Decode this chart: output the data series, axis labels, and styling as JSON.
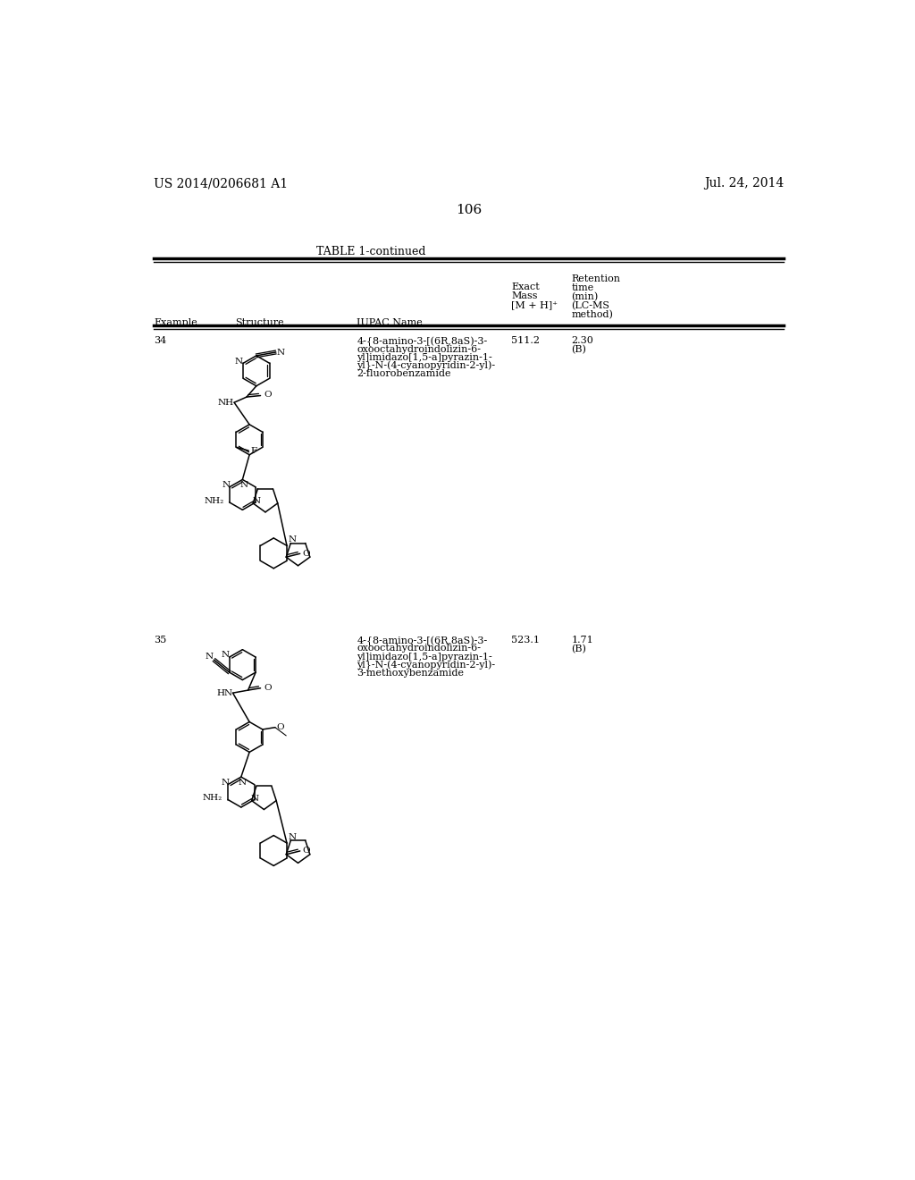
{
  "page_number": "106",
  "patent_number": "US 2014/0206681 A1",
  "patent_date": "Jul. 24, 2014",
  "table_title": "TABLE 1-continued",
  "background_color": "#ffffff",
  "rows": [
    {
      "example": "34",
      "iupac_lines": [
        "4-{8-amino-3-[(6R,8aS)-3-",
        "oxooctahydroindolizin-6-",
        "yl]imidazo[1,5-a]pyrazin-1-",
        "yl}-N-(4-cyanopyridin-2-yl)-",
        "2-fluorobenzamide"
      ],
      "exact_mass": "511.2",
      "retention_line1": "2.30",
      "retention_line2": "(B)"
    },
    {
      "example": "35",
      "iupac_lines": [
        "4-{8-amino-3-[(6R,8aS)-3-",
        "oxooctahydroindolizin-6-",
        "yl]imidazo[1,5-a]pyrazin-1-",
        "yl}-N-(4-cyanopyridin-2-yl)-",
        "3-methoxybenzamide"
      ],
      "exact_mass": "523.1",
      "retention_line1": "1.71",
      "retention_line2": "(B)"
    }
  ]
}
